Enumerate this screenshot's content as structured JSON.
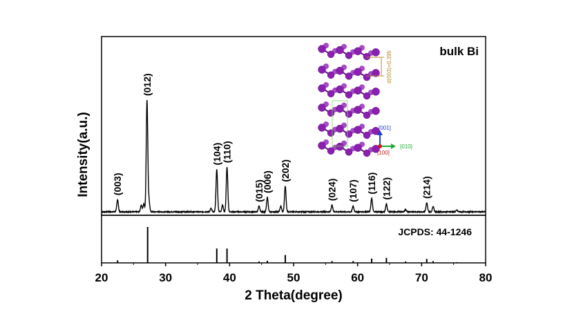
{
  "chart_data": {
    "type": "line",
    "xlabel": "2 Theta(degree)",
    "ylabel": "Intensity(a.u.)",
    "xlim": [
      20,
      80
    ],
    "x_ticks": [
      "20",
      "30",
      "40",
      "50",
      "60",
      "70",
      "80"
    ],
    "grid": false,
    "sample_label": "bulk Bi",
    "reference_label": "JCPDS:  44-1246",
    "upper_panel_max": 1.0,
    "baseline_noise": 0.004,
    "peak_width": 0.12,
    "pattern_peaks": [
      {
        "x": 22.5,
        "h": 0.11
      },
      {
        "x": 26.2,
        "h": 0.06
      },
      {
        "x": 26.6,
        "h": 0.07
      },
      {
        "x": 27.1,
        "h": 1.0
      },
      {
        "x": 27.4,
        "h": 0.1
      },
      {
        "x": 37.1,
        "h": 0.03
      },
      {
        "x": 38.0,
        "h": 0.38
      },
      {
        "x": 38.9,
        "h": 0.06
      },
      {
        "x": 39.6,
        "h": 0.4
      },
      {
        "x": 44.6,
        "h": 0.05
      },
      {
        "x": 45.9,
        "h": 0.13
      },
      {
        "x": 48.0,
        "h": 0.05
      },
      {
        "x": 48.7,
        "h": 0.23
      },
      {
        "x": 56.0,
        "h": 0.06
      },
      {
        "x": 59.3,
        "h": 0.05
      },
      {
        "x": 62.2,
        "h": 0.12
      },
      {
        "x": 64.5,
        "h": 0.07
      },
      {
        "x": 67.5,
        "h": 0.02
      },
      {
        "x": 70.8,
        "h": 0.08
      },
      {
        "x": 71.8,
        "h": 0.05
      },
      {
        "x": 75.5,
        "h": 0.015
      }
    ],
    "peak_labels": [
      {
        "text": "(003)",
        "x": 22.5,
        "h": 0.11
      },
      {
        "text": "(012)",
        "x": 27.1,
        "h": 1.0
      },
      {
        "text": "(104)",
        "x": 38.0,
        "h": 0.38
      },
      {
        "text": "(110)",
        "x": 39.6,
        "h": 0.4
      },
      {
        "text": "(015)",
        "x": 44.6,
        "h": 0.05
      },
      {
        "text": "(006)",
        "x": 45.9,
        "h": 0.13
      },
      {
        "text": "(202)",
        "x": 48.7,
        "h": 0.23
      },
      {
        "text": "(024)",
        "x": 56.0,
        "h": 0.06
      },
      {
        "text": "(107)",
        "x": 59.3,
        "h": 0.05
      },
      {
        "text": "(116)",
        "x": 62.2,
        "h": 0.12
      },
      {
        "text": "(122)",
        "x": 64.5,
        "h": 0.07
      },
      {
        "text": "(214)",
        "x": 70.8,
        "h": 0.08
      }
    ],
    "reference_lines": [
      {
        "x": 22.5,
        "h": 0.07
      },
      {
        "x": 27.2,
        "h": 1.0
      },
      {
        "x": 38.0,
        "h": 0.4
      },
      {
        "x": 39.6,
        "h": 0.4
      },
      {
        "x": 44.6,
        "h": 0.04
      },
      {
        "x": 45.9,
        "h": 0.06
      },
      {
        "x": 48.7,
        "h": 0.22
      },
      {
        "x": 56.0,
        "h": 0.05
      },
      {
        "x": 59.3,
        "h": 0.05
      },
      {
        "x": 62.2,
        "h": 0.12
      },
      {
        "x": 64.5,
        "h": 0.14
      },
      {
        "x": 67.5,
        "h": 0.04
      },
      {
        "x": 70.8,
        "h": 0.11
      },
      {
        "x": 71.8,
        "h": 0.05
      },
      {
        "x": 75.5,
        "h": 0.02
      }
    ]
  },
  "inset": {
    "d_label": "d(003)=0.395",
    "axis_001": "[001]",
    "axis_010": "[010]",
    "axis_100": "[100]",
    "atom_color": "#8a1fb0",
    "bond_color": "#5a0f78",
    "d_color": "#b8862a",
    "axis_001_color": "#1e3fd6",
    "axis_010_color": "#1faa2f",
    "axis_100_color": "#c81e1e"
  }
}
